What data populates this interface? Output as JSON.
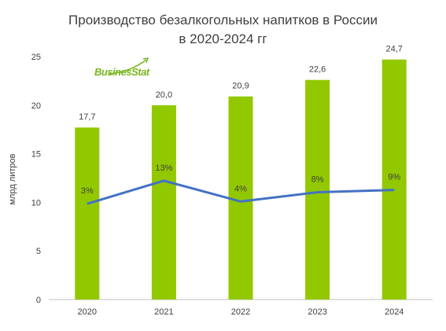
{
  "chart_data": {
    "type": "bar",
    "title_lines": [
      "Производство безалкогольных напитков в России",
      "в 2020-2024 гг"
    ],
    "ylabel": "млрд литров",
    "xlabel": "",
    "categories": [
      "2020",
      "2021",
      "2022",
      "2023",
      "2024"
    ],
    "values": [
      17.7,
      20.0,
      20.9,
      22.6,
      24.7
    ],
    "value_labels": [
      "17,7",
      "20,0",
      "20,9",
      "22,6",
      "24,7"
    ],
    "ylim": [
      0,
      25
    ],
    "yticks": [
      "0",
      "5",
      "10",
      "15",
      "20",
      "25"
    ],
    "grid": false,
    "growth_line": {
      "values": [
        3,
        13,
        4,
        8,
        9
      ],
      "labels": [
        "3%",
        "13%",
        "4%",
        "8%",
        "9%"
      ]
    },
    "colors": {
      "bar": "#92c800",
      "line": "#4472c4",
      "text": "#404040",
      "axis": "#bfbfbf"
    }
  },
  "logo": {
    "text": "BusinesStat"
  }
}
